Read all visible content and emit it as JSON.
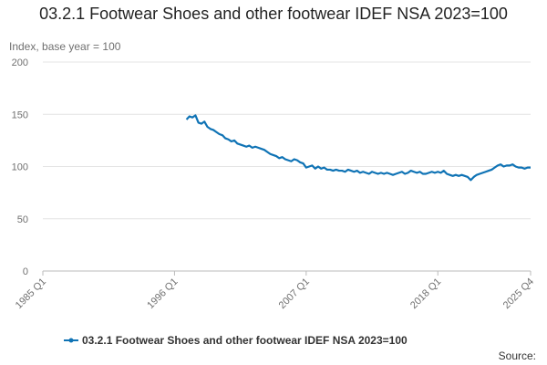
{
  "chart_data": {
    "type": "line",
    "title": "03.2.1 Footwear Shoes and other footwear IDEF NSA 2023=100",
    "y_label": "Index, base year = 100",
    "source_label": "Source:",
    "ylim": [
      0,
      200
    ],
    "yticks": [
      0,
      50,
      100,
      150,
      200
    ],
    "grid": true,
    "categories": [
      "1985 Q1",
      null,
      null,
      null,
      null,
      null,
      null,
      null,
      null,
      null,
      null,
      null,
      null,
      null,
      null,
      null,
      null,
      null,
      null,
      null,
      null,
      null,
      null,
      null,
      null,
      null,
      null,
      null,
      null,
      null,
      null,
      null,
      null,
      null,
      null,
      null,
      null,
      null,
      null,
      null,
      null,
      null,
      null,
      null,
      "1996 Q1",
      null,
      null,
      null,
      null,
      null,
      null,
      null,
      null,
      null,
      null,
      null,
      null,
      null,
      null,
      null,
      null,
      null,
      null,
      null,
      null,
      null,
      null,
      null,
      null,
      null,
      null,
      null,
      null,
      null,
      null,
      null,
      null,
      null,
      null,
      null,
      null,
      null,
      null,
      null,
      null,
      null,
      null,
      null,
      "2007 Q1",
      null,
      null,
      null,
      null,
      null,
      null,
      null,
      null,
      null,
      null,
      null,
      null,
      null,
      null,
      null,
      null,
      null,
      null,
      null,
      null,
      null,
      null,
      null,
      null,
      null,
      null,
      null,
      null,
      null,
      null,
      null,
      null,
      null,
      null,
      null,
      null,
      null,
      null,
      null,
      null,
      null,
      null,
      null,
      "2018 Q1",
      null,
      null,
      null,
      null,
      null,
      null,
      null,
      null,
      null,
      null,
      null,
      null,
      null,
      null,
      null,
      null,
      null,
      null,
      null,
      null,
      null,
      null,
      null,
      null,
      null,
      null,
      null,
      null,
      null,
      null,
      "2025 Q4"
    ],
    "series": [
      {
        "name": "03.2.1 Footwear Shoes and other footwear IDEF NSA 2023=100",
        "color": "#0f73b5",
        "values": [
          null,
          null,
          null,
          null,
          null,
          null,
          null,
          null,
          null,
          null,
          null,
          null,
          null,
          null,
          null,
          null,
          null,
          null,
          null,
          null,
          null,
          null,
          null,
          null,
          null,
          null,
          null,
          null,
          null,
          null,
          null,
          null,
          null,
          null,
          null,
          null,
          null,
          null,
          null,
          null,
          null,
          null,
          null,
          null,
          null,
          null,
          null,
          null,
          145,
          148,
          147,
          149,
          142,
          141,
          143,
          138,
          136,
          135,
          133,
          131,
          130,
          127,
          126,
          124,
          125,
          122,
          121,
          120,
          119,
          120,
          118,
          119,
          118,
          117,
          116,
          114,
          112,
          111,
          110,
          108,
          109,
          107,
          106,
          105,
          107,
          106,
          104,
          103,
          99,
          100,
          101,
          98,
          100,
          98,
          99,
          97,
          97,
          96,
          97,
          96,
          96,
          95,
          97,
          96,
          95,
          96,
          94,
          95,
          94,
          93,
          95,
          94,
          93,
          94,
          93,
          94,
          93,
          92,
          93,
          94,
          95,
          93,
          94,
          96,
          95,
          94,
          95,
          93,
          93,
          94,
          95,
          94,
          95,
          94,
          96,
          93,
          92,
          91,
          92,
          91,
          92,
          91,
          90,
          87,
          90,
          92,
          93,
          94,
          95,
          96,
          97,
          99,
          101,
          102,
          100,
          101,
          101,
          102,
          100,
          99,
          99,
          98,
          99,
          99
        ]
      }
    ]
  }
}
